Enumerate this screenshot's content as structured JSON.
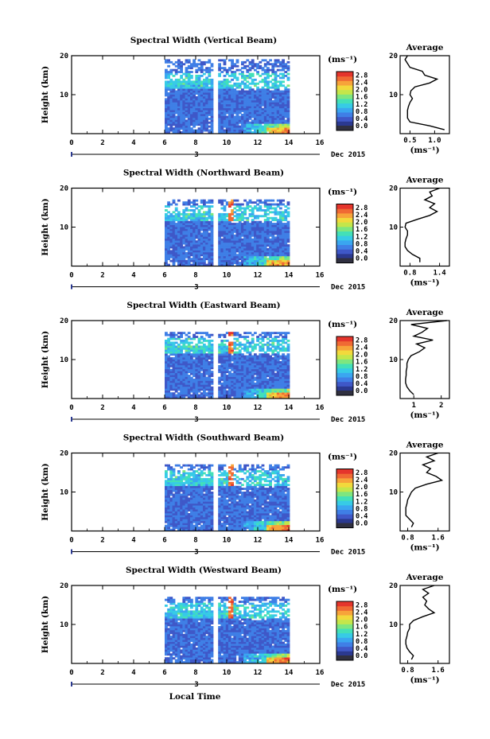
{
  "colors": {
    "colormap": [
      "#2b3990",
      "#3f58c8",
      "#3f7fe6",
      "#3aa6f0",
      "#37cbe6",
      "#43e0b8",
      "#7ee67f",
      "#c4e64a",
      "#f2d93c",
      "#f7a43a",
      "#f06a34",
      "#e5352c"
    ],
    "colorbar_bottom": "#303040",
    "axis": "#000000"
  },
  "shared": {
    "x_ticks": [
      "0",
      "2",
      "4",
      "6",
      "8",
      "10",
      "12",
      "14",
      "16"
    ],
    "x_tick_values": [
      0,
      2,
      4,
      6,
      8,
      10,
      12,
      14,
      16
    ],
    "x_range": [
      0,
      16
    ],
    "y_ticks": [
      "20",
      "10"
    ],
    "y_tick_values": [
      20,
      10
    ],
    "y_range": [
      0,
      20
    ],
    "ylabel": "Height (km)",
    "date_label": "Dec 2015",
    "day_marker": "3",
    "xlabel": "Local Time",
    "colorbar_unit": "(ms⁻¹)",
    "colorbar_labels": [
      "2.8",
      "2.4",
      "2.0",
      "1.6",
      "1.2",
      "0.8",
      "0.4",
      "0.0"
    ],
    "colorbar_values": [
      2.8,
      2.4,
      2.0,
      1.6,
      1.2,
      0.8,
      0.4,
      0.0
    ],
    "colorbar_range": [
      0,
      3.0
    ],
    "profile_title": "Average",
    "profile_unit": "(ms⁻¹)",
    "data_time_range": [
      6,
      14
    ],
    "data_gap": [
      9.1,
      9.4
    ]
  },
  "chart_data": [
    {
      "type": "heatmap",
      "title": "Spectral Width (Vertical Beam)",
      "profile": {
        "type": "line",
        "x_ticks": [
          "0.5",
          "1.0"
        ],
        "x_tick_values": [
          0.5,
          1.0
        ],
        "xlim": [
          0.3,
          1.3
        ],
        "height": [
          1,
          2,
          3,
          4,
          5,
          6,
          7,
          8,
          9,
          10,
          11,
          12,
          13,
          14,
          15,
          16,
          17,
          18,
          19,
          20
        ],
        "values": [
          1.2,
          0.9,
          0.5,
          0.45,
          0.45,
          0.45,
          0.47,
          0.5,
          0.55,
          0.5,
          0.52,
          0.6,
          0.9,
          1.05,
          0.8,
          0.75,
          0.5,
          0.45,
          0.4,
          0.45
        ]
      }
    },
    {
      "type": "heatmap",
      "title": "Spectral Width (Northward Beam)",
      "profile": {
        "type": "line",
        "x_ticks": [
          "0.8",
          "1.4"
        ],
        "x_tick_values": [
          0.8,
          1.4
        ],
        "xlim": [
          0.6,
          1.6
        ],
        "height": [
          1,
          2,
          3,
          4,
          5,
          6,
          7,
          8,
          9,
          10,
          11,
          12,
          13,
          14,
          15,
          16,
          17,
          18,
          19,
          20
        ],
        "values": [
          1.0,
          1.0,
          0.85,
          0.75,
          0.7,
          0.7,
          0.72,
          0.75,
          0.75,
          0.7,
          0.72,
          0.95,
          1.2,
          1.35,
          1.2,
          1.3,
          1.1,
          1.25,
          1.2,
          1.4
        ]
      }
    },
    {
      "type": "heatmap",
      "title": "Spectral Width (Eastward Beam)",
      "profile": {
        "type": "line",
        "x_ticks": [
          "1",
          "2"
        ],
        "x_tick_values": [
          1,
          2
        ],
        "xlim": [
          0.5,
          2.3
        ],
        "height": [
          1,
          2,
          3,
          4,
          5,
          6,
          7,
          8,
          9,
          10,
          11,
          12,
          13,
          14,
          15,
          16,
          17,
          18,
          19,
          20
        ],
        "values": [
          1.0,
          0.85,
          0.75,
          0.7,
          0.7,
          0.72,
          0.72,
          0.75,
          0.75,
          0.8,
          0.9,
          1.2,
          1.4,
          1.1,
          1.7,
          1.0,
          1.3,
          1.5,
          0.9,
          2.2
        ]
      }
    },
    {
      "type": "heatmap",
      "title": "Spectral Width (Southward Beam)",
      "profile": {
        "type": "line",
        "x_ticks": [
          "0.8",
          "1.6"
        ],
        "x_tick_values": [
          0.8,
          1.6
        ],
        "xlim": [
          0.6,
          1.9
        ],
        "height": [
          1,
          2,
          3,
          4,
          5,
          6,
          7,
          8,
          9,
          10,
          11,
          12,
          13,
          14,
          15,
          16,
          17,
          18,
          19,
          20
        ],
        "values": [
          0.9,
          0.95,
          0.85,
          0.75,
          0.75,
          0.75,
          0.78,
          0.8,
          0.85,
          0.9,
          1.0,
          1.3,
          1.7,
          1.55,
          1.3,
          1.4,
          1.2,
          1.5,
          1.3,
          1.6
        ]
      }
    },
    {
      "type": "heatmap",
      "title": "Spectral Width (Westward Beam)",
      "profile": {
        "type": "line",
        "x_ticks": [
          "0.8",
          "1.6"
        ],
        "x_tick_values": [
          0.8,
          1.6
        ],
        "xlim": [
          0.6,
          1.9
        ],
        "height": [
          1,
          2,
          3,
          4,
          5,
          6,
          7,
          8,
          9,
          10,
          11,
          12,
          13,
          14,
          15,
          16,
          17,
          18,
          19,
          20
        ],
        "values": [
          0.9,
          0.95,
          0.85,
          0.78,
          0.75,
          0.75,
          0.78,
          0.8,
          0.85,
          0.85,
          0.95,
          1.2,
          1.5,
          1.35,
          1.25,
          1.3,
          1.2,
          1.35,
          1.2,
          1.5
        ]
      }
    }
  ]
}
